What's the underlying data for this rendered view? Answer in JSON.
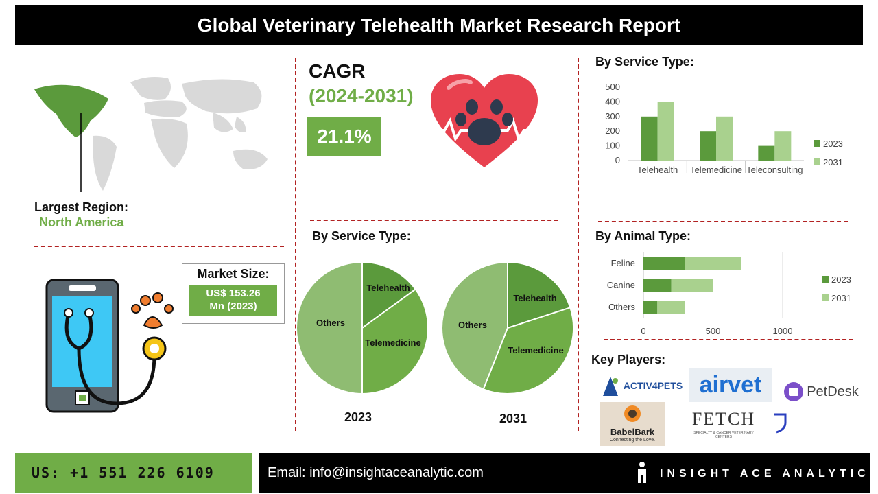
{
  "header": {
    "title": "Global Veterinary Telehealth Market Research Report"
  },
  "region": {
    "label": "Largest Region:",
    "value": "North America"
  },
  "cagr": {
    "label": "CAGR",
    "period": "(2024-2031)",
    "value": "21.1%"
  },
  "market_size": {
    "label": "Market Size:",
    "value_line1": "US$ 153.26",
    "value_line2": "Mn (2023)"
  },
  "pie_section": {
    "title": "By Service Type:",
    "year_left": "2023",
    "year_right": "2031"
  },
  "service_section": {
    "title": "By Service Type:"
  },
  "animal_section": {
    "title": "By Animal Type:"
  },
  "key_players": {
    "title": "Key Players:",
    "logos": [
      "ACTIV4PETS",
      "airvet",
      "PetDesk",
      "BabelBark",
      "Connecting the Love.",
      "FETCH",
      "SPECIALTY & CANCER VETERINARY CENTERS"
    ]
  },
  "footer": {
    "phone": "US: +1 551 226 6109",
    "email": "Email: info@insightaceanalytic.com",
    "brand": "INSIGHT ACE ANALYTIC"
  },
  "colors": {
    "dark_green": "#5b9a3c",
    "light_green": "#a9d18e",
    "accent_green": "#70ad47",
    "dash_red": "#b22222"
  },
  "chart_data": [
    {
      "type": "bar",
      "title": "By Service Type:",
      "categories": [
        "Telehealth",
        "Telemedicine",
        "Teleconsulting"
      ],
      "series": [
        {
          "name": "2023",
          "values": [
            300,
            200,
            100
          ],
          "color": "#5b9a3c"
        },
        {
          "name": "2031",
          "values": [
            400,
            300,
            200
          ],
          "color": "#a9d18e"
        }
      ],
      "ylim": [
        0,
        500
      ],
      "yticks": [
        0,
        100,
        200,
        300,
        400,
        500
      ],
      "legend": "right"
    },
    {
      "type": "bar",
      "orientation": "horizontal",
      "stacked": true,
      "title": "By Animal Type:",
      "categories": [
        "Feline",
        "Canine",
        "Others"
      ],
      "series": [
        {
          "name": "2023",
          "values": [
            300,
            200,
            100
          ],
          "color": "#5b9a3c"
        },
        {
          "name": "2031",
          "values": [
            400,
            300,
            200
          ],
          "color": "#a9d18e"
        }
      ],
      "xlim": [
        0,
        1000
      ],
      "xticks": [
        0,
        500,
        1000
      ],
      "legend": "right"
    },
    {
      "type": "pie",
      "title": "2023",
      "slices": [
        {
          "label": "Telehealth",
          "value": 15,
          "color": "#5b9a3c"
        },
        {
          "label": "Telemedicine",
          "value": 35,
          "color": "#70ad47"
        },
        {
          "label": "Others",
          "value": 50,
          "color": "#8fbc72"
        }
      ]
    },
    {
      "type": "pie",
      "title": "2031",
      "slices": [
        {
          "label": "Telehealth",
          "value": 20,
          "color": "#5b9a3c"
        },
        {
          "label": "Telemedicine",
          "value": 36,
          "color": "#70ad47"
        },
        {
          "label": "Others",
          "value": 44,
          "color": "#8fbc72"
        }
      ]
    }
  ]
}
